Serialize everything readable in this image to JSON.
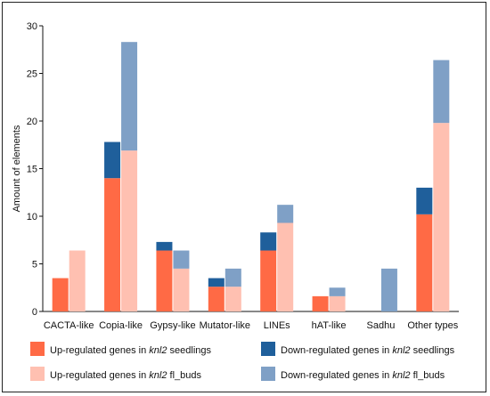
{
  "chart_data": {
    "type": "bar",
    "stacked": true,
    "ylabel": "Amount of elements",
    "ylim": [
      0,
      30
    ],
    "yticks": [
      0,
      5,
      10,
      15,
      20,
      25,
      30
    ],
    "grid": false,
    "legend_position": "bottom",
    "categories": [
      "CACTA-like",
      "Copia-like",
      "Gypsy-like",
      "Mutator-like",
      "LINEs",
      "hAT-like",
      "Sadhu",
      "Other types"
    ],
    "groups": [
      {
        "tissue": "seedlings",
        "series": [
          {
            "name_parts": [
              "Up-regulated genes in ",
              "knl2",
              " seedlings"
            ],
            "color": "#ff6a45",
            "values": [
              3.5,
              14.0,
              6.4,
              2.6,
              6.4,
              1.6,
              0,
              10.2
            ]
          },
          {
            "name_parts": [
              "Down-regulated genes in ",
              "knl2",
              " seedlings"
            ],
            "color": "#1f5f9b",
            "values": [
              0,
              3.8,
              0.9,
              0.9,
              1.9,
              0,
              0,
              2.8
            ]
          }
        ]
      },
      {
        "tissue": "fl_buds",
        "series": [
          {
            "name_parts": [
              "Up-regulated genes in ",
              "knl2",
              " fl_buds"
            ],
            "color": "#ffc0b1",
            "values": [
              6.4,
              16.9,
              4.5,
              2.6,
              9.3,
              1.6,
              0,
              19.8
            ]
          },
          {
            "name_parts": [
              "Down-regulated genes in ",
              "knl2",
              " fl_buds"
            ],
            "color": "#7fa0c6",
            "values": [
              0,
              11.4,
              1.9,
              1.9,
              1.9,
              0.9,
              4.5,
              6.6
            ]
          }
        ]
      }
    ]
  }
}
